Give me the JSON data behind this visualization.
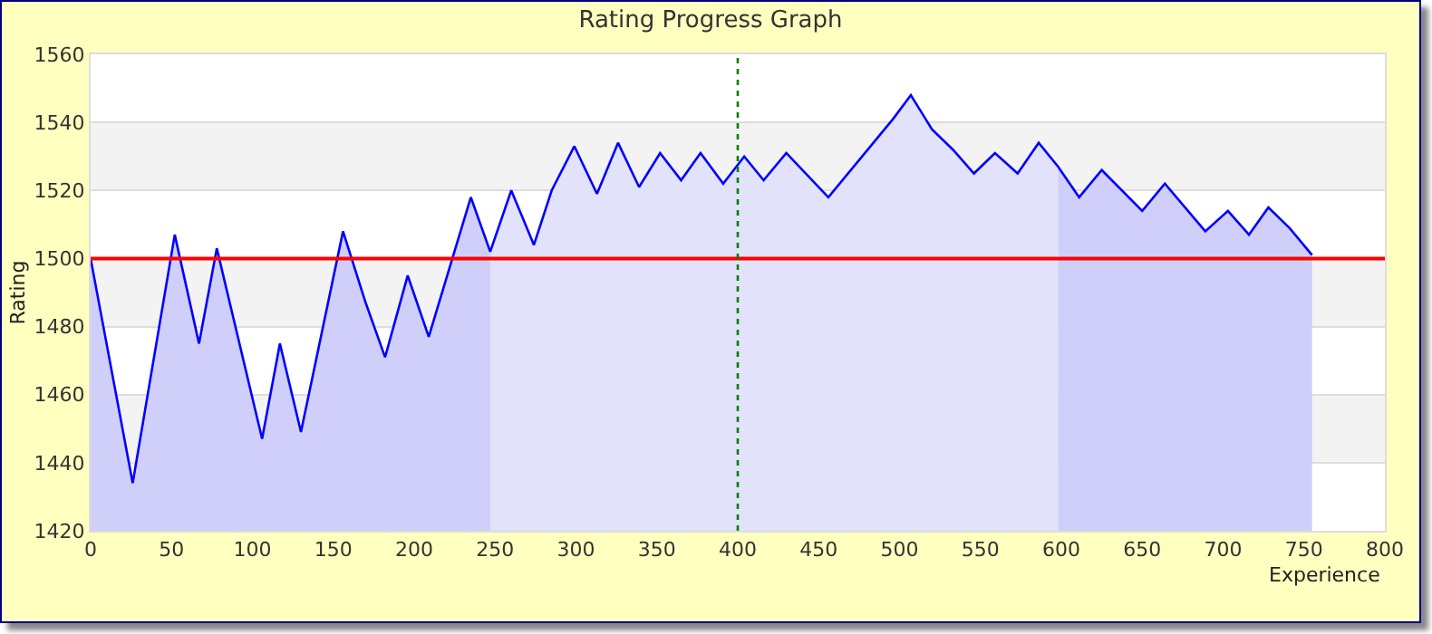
{
  "chart_data": {
    "type": "line",
    "title": "Rating Progress Graph",
    "xlabel": "Experience",
    "ylabel": "Rating",
    "xlim": [
      0,
      800
    ],
    "xticks": [
      0,
      50,
      100,
      150,
      200,
      250,
      300,
      350,
      400,
      450,
      500,
      550,
      600,
      650,
      700,
      750,
      800
    ],
    "ylim": [
      1420,
      1560
    ],
    "yticks": [
      1420,
      1440,
      1460,
      1480,
      1500,
      1520,
      1540,
      1560
    ],
    "grid": "y",
    "legend": false,
    "marker": "none",
    "line_style": "solid",
    "ref_lines": [
      {
        "axis": "y",
        "value": 1500,
        "color": "#ff0000",
        "line_style": "solid"
      },
      {
        "axis": "x",
        "value": 400,
        "color": "#008000",
        "line_style": "dotted"
      }
    ],
    "series": [
      {
        "type": "area",
        "color": "#cfcffa",
        "x": [
          0,
          26,
          52,
          67,
          78,
          106,
          117,
          130,
          156,
          170,
          182,
          196,
          209,
          235,
          247
        ],
        "values": [
          1500,
          1434,
          1507,
          1475,
          1503,
          1447,
          1475,
          1449,
          1508,
          1487,
          1471,
          1495,
          1477,
          1518,
          1502
        ]
      },
      {
        "type": "area",
        "color": "#e2e2fa",
        "x": [
          247,
          260,
          274,
          285,
          299,
          313,
          326,
          339,
          352,
          365,
          377,
          391,
          404,
          416,
          430,
          456,
          496,
          507,
          520,
          533,
          546,
          559,
          573,
          586,
          598
        ],
        "values": [
          1502,
          1520,
          1504,
          1520,
          1533,
          1519,
          1534,
          1521,
          1531,
          1523,
          1531,
          1522,
          1530,
          1523,
          1531,
          1518,
          1541,
          1548,
          1538,
          1532,
          1525,
          1531,
          1525,
          1534,
          1527
        ]
      },
      {
        "type": "area",
        "color": "#cfcffa",
        "x": [
          598,
          611,
          625,
          650,
          664,
          689,
          703,
          716,
          728,
          741,
          755
        ],
        "values": [
          1527,
          1518,
          1526,
          1514,
          1522,
          1508,
          1514,
          1507,
          1515,
          1509,
          1501
        ]
      },
      {
        "color": "#0000ff",
        "x": [
          0,
          26,
          52,
          67,
          78,
          106,
          117,
          130,
          156,
          170,
          182,
          196,
          209,
          235,
          247,
          260,
          274,
          285,
          299,
          313,
          326,
          339,
          352,
          365,
          377,
          391,
          404,
          416,
          430,
          456,
          496,
          507,
          520,
          533,
          546,
          559,
          573,
          586,
          598,
          611,
          625,
          650,
          664,
          689,
          703,
          716,
          728,
          741,
          755
        ],
        "values": [
          1500,
          1434,
          1507,
          1475,
          1503,
          1447,
          1475,
          1449,
          1508,
          1487,
          1471,
          1495,
          1477,
          1518,
          1502,
          1520,
          1504,
          1520,
          1533,
          1519,
          1534,
          1521,
          1531,
          1523,
          1531,
          1522,
          1530,
          1523,
          1531,
          1518,
          1541,
          1548,
          1538,
          1532,
          1525,
          1531,
          1525,
          1534,
          1527,
          1518,
          1526,
          1514,
          1522,
          1508,
          1514,
          1507,
          1515,
          1509,
          1501
        ]
      }
    ]
  }
}
